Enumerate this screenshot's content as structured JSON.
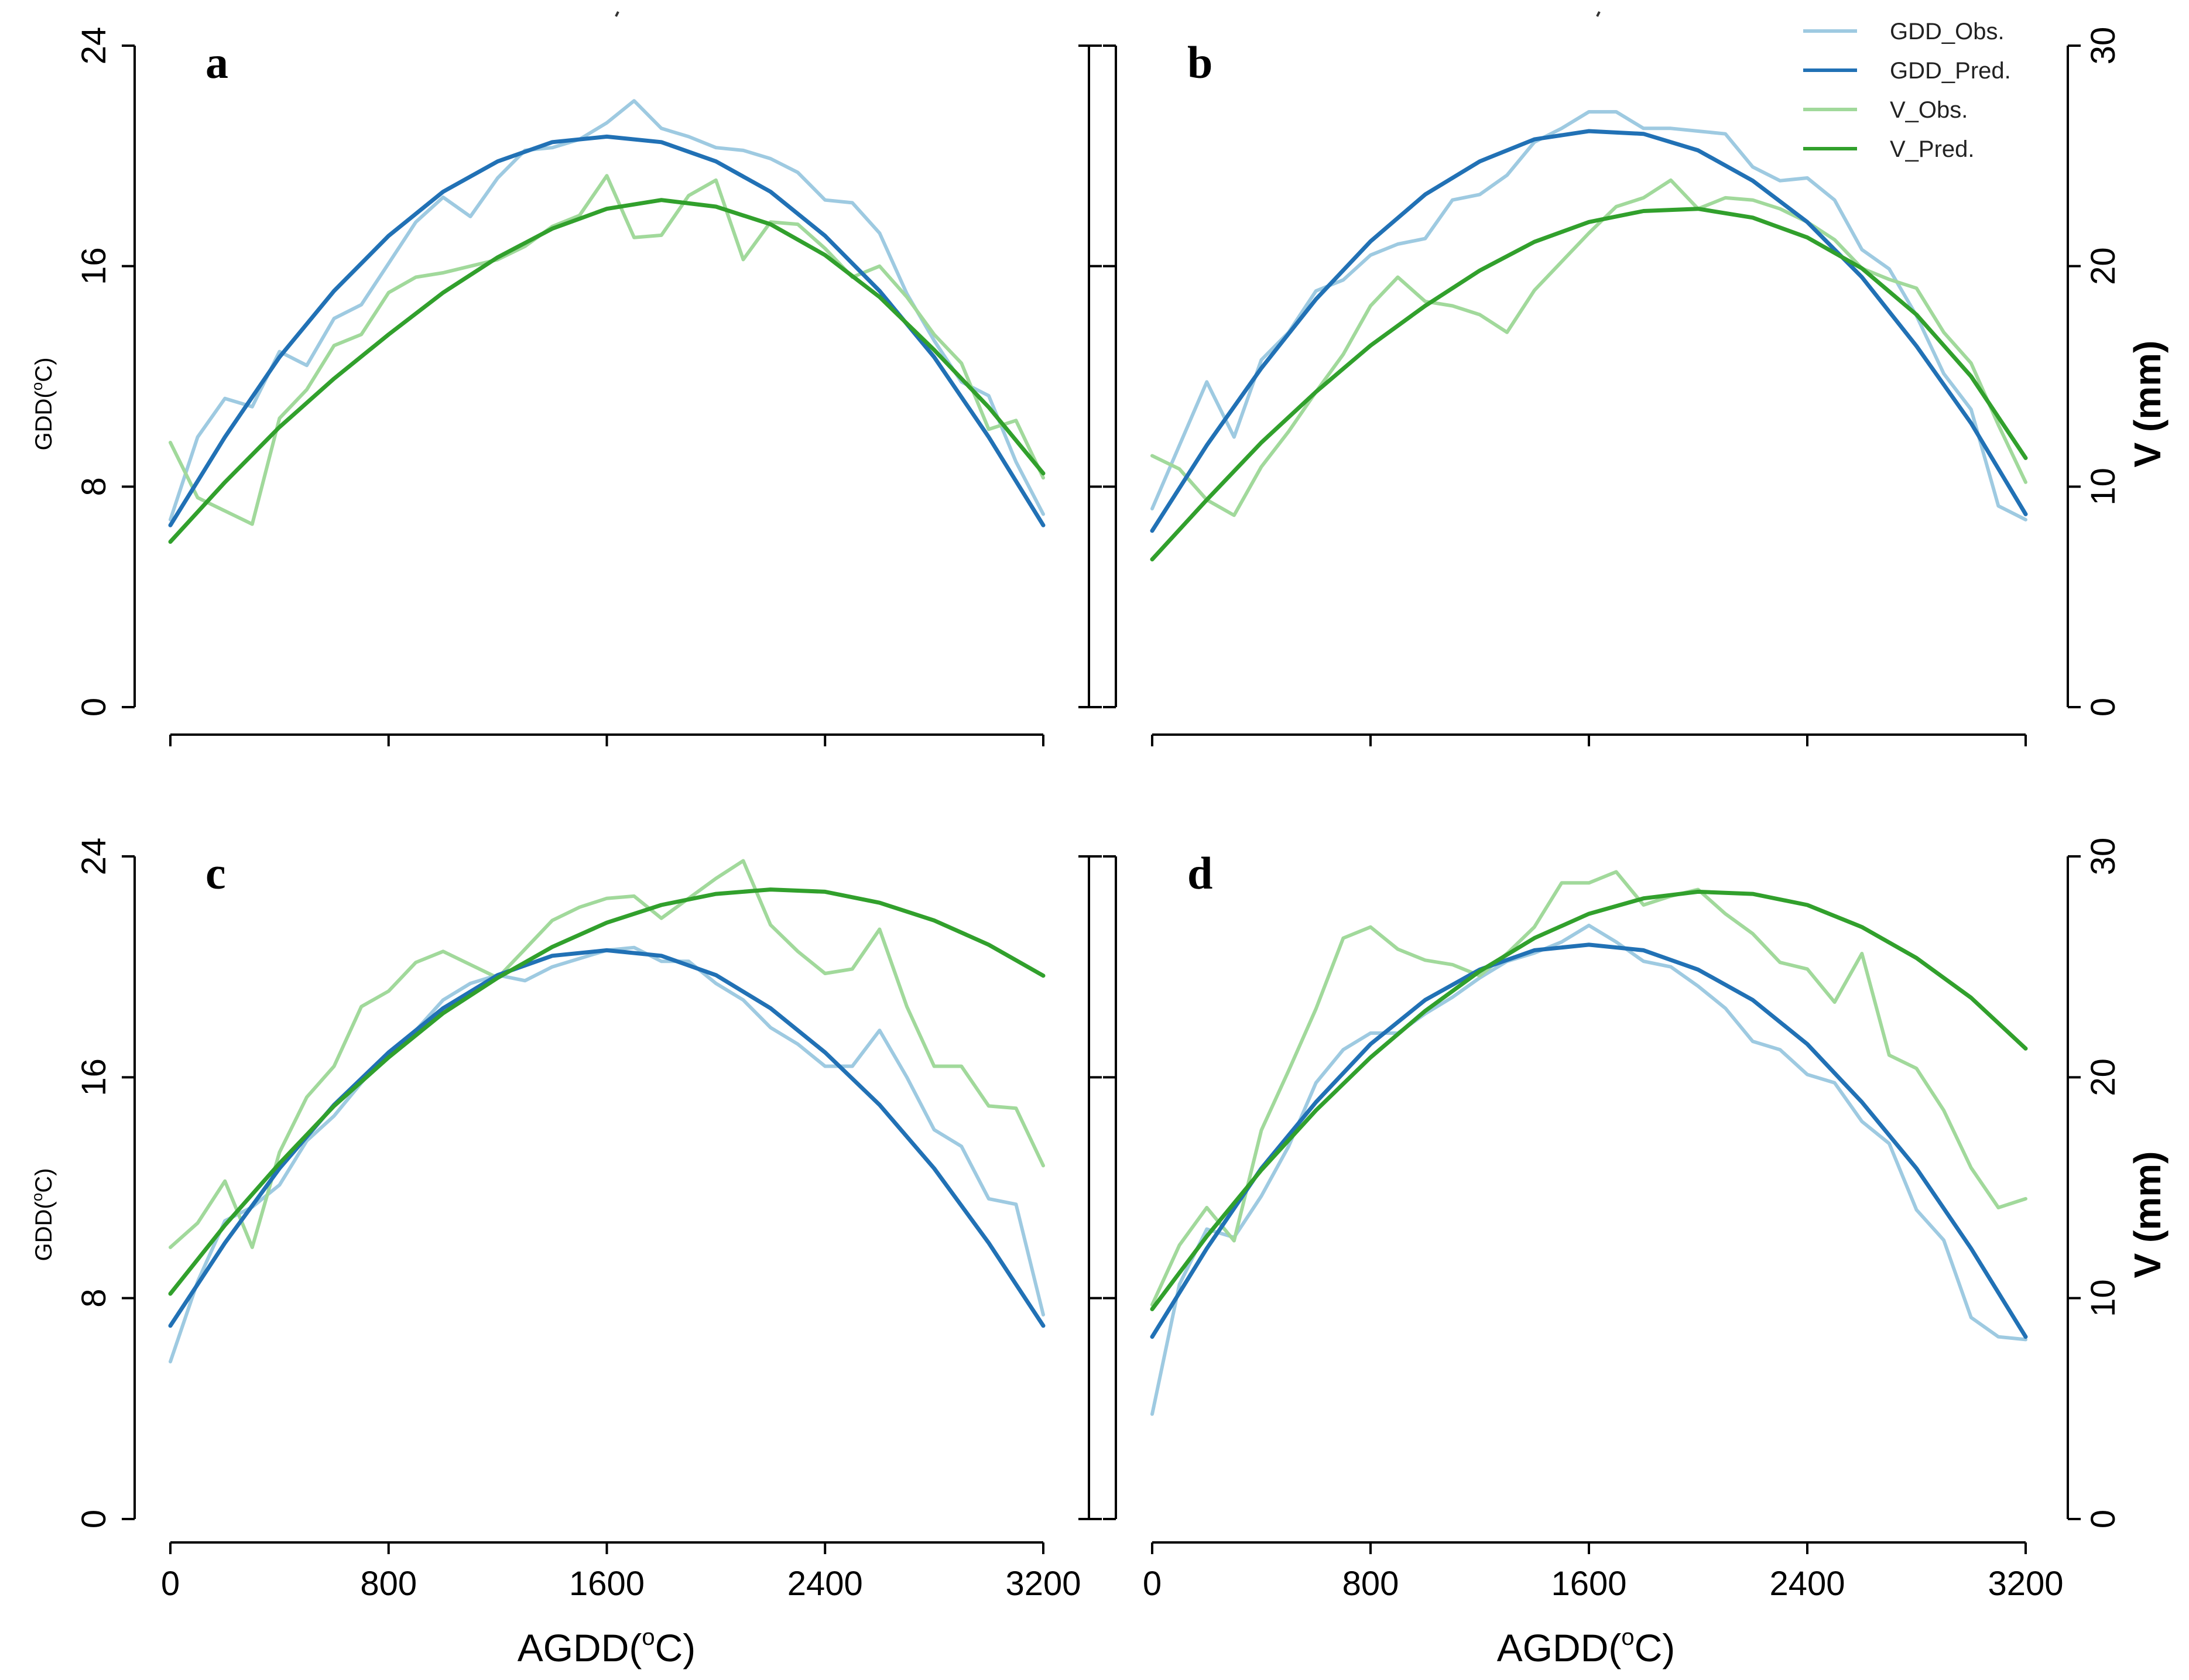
{
  "figure": {
    "x_axis_title_main": "AGDD(",
    "x_axis_title_sup": "o",
    "x_axis_title_tail": "C)",
    "left_axis_title_main": "GDD(",
    "left_axis_title_sup": "o",
    "left_axis_title_tail": "C)",
    "right_axis_title": "V (mm)"
  },
  "legend": {
    "items": [
      {
        "label": "GDD_Obs.",
        "color": "#9ecae1"
      },
      {
        "label": "GDD_Pred.",
        "color": "#2171b5"
      },
      {
        "label": "V_Obs.",
        "color": "#a1d99b"
      },
      {
        "label": "V_Pred.",
        "color": "#31a02c"
      }
    ]
  },
  "chart_data": [
    {
      "panel": "a",
      "type": "line",
      "xlim": [
        0,
        3200
      ],
      "x_ticks": [
        "0",
        "800",
        "1600",
        "2400",
        "3200"
      ],
      "ylim_left": [
        0,
        24
      ],
      "y_ticks_left": [
        "0",
        "8",
        "16",
        "24"
      ],
      "ylim_right": [
        0,
        30
      ],
      "y_ticks_right": [
        "0",
        "10",
        "20",
        "30"
      ],
      "series": [
        {
          "name": "GDD_Obs.",
          "axis": "left",
          "x": [
            0,
            100,
            200,
            300,
            400,
            500,
            600,
            700,
            800,
            900,
            1000,
            1100,
            1200,
            1300,
            1400,
            1500,
            1600,
            1700,
            1800,
            1900,
            2000,
            2100,
            2200,
            2300,
            2400,
            2500,
            2600,
            2700,
            2800,
            2900,
            3000,
            3100,
            3200
          ],
          "y": [
            6.8,
            9.8,
            11.2,
            10.9,
            12.9,
            12.4,
            14.1,
            14.6,
            16.1,
            17.6,
            18.5,
            17.8,
            19.2,
            20.2,
            20.3,
            20.6,
            21.2,
            22.0,
            21.0,
            20.7,
            20.3,
            20.2,
            19.9,
            19.4,
            18.4,
            18.3,
            17.2,
            15.0,
            13.3,
            11.8,
            11.3,
            8.9,
            7.0
          ]
        },
        {
          "name": "GDD_Pred.",
          "axis": "left",
          "x": [
            0,
            200,
            400,
            600,
            800,
            1000,
            1200,
            1400,
            1600,
            1800,
            2000,
            2200,
            2400,
            2600,
            2800,
            3000,
            3200
          ],
          "y": [
            6.6,
            9.8,
            12.7,
            15.1,
            17.1,
            18.7,
            19.8,
            20.5,
            20.7,
            20.5,
            19.8,
            18.7,
            17.1,
            15.1,
            12.7,
            9.8,
            6.6
          ]
        },
        {
          "name": "V_Obs.",
          "axis": "right",
          "x": [
            0,
            100,
            200,
            300,
            400,
            500,
            600,
            700,
            800,
            900,
            1000,
            1100,
            1200,
            1300,
            1400,
            1500,
            1600,
            1700,
            1800,
            1900,
            2000,
            2100,
            2200,
            2300,
            2400,
            2500,
            2600,
            2700,
            2800,
            2900,
            3000,
            3100,
            3200
          ],
          "y": [
            12.0,
            9.5,
            8.9,
            8.3,
            13.1,
            14.4,
            16.4,
            16.9,
            18.8,
            19.5,
            19.7,
            20.0,
            20.3,
            20.9,
            21.8,
            22.3,
            24.1,
            21.3,
            21.4,
            23.2,
            23.9,
            20.3,
            22.0,
            21.9,
            20.8,
            19.5,
            20.0,
            18.6,
            16.9,
            15.6,
            12.6,
            13.0,
            10.4
          ]
        },
        {
          "name": "V_Pred.",
          "axis": "right",
          "x": [
            0,
            200,
            400,
            600,
            800,
            1000,
            1200,
            1400,
            1600,
            1800,
            2000,
            2200,
            2400,
            2600,
            2800,
            3000,
            3200
          ],
          "y": [
            7.5,
            10.2,
            12.7,
            14.9,
            16.9,
            18.8,
            20.4,
            21.7,
            22.6,
            23.0,
            22.7,
            21.9,
            20.5,
            18.6,
            16.2,
            13.6,
            10.6
          ]
        }
      ]
    },
    {
      "panel": "b",
      "type": "line",
      "xlim": [
        0,
        3200
      ],
      "x_ticks": [
        "0",
        "800",
        "1600",
        "2400",
        "3200"
      ],
      "ylim_left": [
        0,
        24
      ],
      "y_ticks_left": [
        "0",
        "8",
        "16",
        "24"
      ],
      "ylim_right": [
        0,
        30
      ],
      "y_ticks_right": [
        "0",
        "10",
        "20",
        "30"
      ],
      "series": [
        {
          "name": "GDD_Obs.",
          "axis": "left",
          "x": [
            0,
            100,
            200,
            300,
            400,
            500,
            600,
            700,
            800,
            900,
            1000,
            1100,
            1200,
            1300,
            1400,
            1500,
            1600,
            1700,
            1800,
            1900,
            2000,
            2100,
            2200,
            2300,
            2400,
            2500,
            2600,
            2700,
            2800,
            2900,
            3000,
            3100,
            3200
          ],
          "y": [
            7.2,
            9.5,
            11.8,
            9.8,
            12.6,
            13.6,
            15.1,
            15.5,
            16.4,
            16.8,
            17.0,
            18.4,
            18.6,
            19.3,
            20.5,
            21.0,
            21.6,
            21.6,
            21.0,
            21.0,
            20.9,
            20.8,
            19.6,
            19.1,
            19.2,
            18.4,
            16.6,
            15.9,
            14.2,
            12.1,
            10.8,
            7.3,
            6.8
          ]
        },
        {
          "name": "GDD_Pred.",
          "axis": "left",
          "x": [
            0,
            200,
            400,
            600,
            800,
            1000,
            1200,
            1400,
            1600,
            1800,
            2000,
            2200,
            2400,
            2600,
            2800,
            3000,
            3200
          ],
          "y": [
            6.4,
            9.5,
            12.3,
            14.8,
            16.9,
            18.6,
            19.8,
            20.6,
            20.9,
            20.8,
            20.2,
            19.1,
            17.6,
            15.6,
            13.1,
            10.3,
            7.0
          ]
        },
        {
          "name": "V_Obs.",
          "axis": "right",
          "x": [
            0,
            100,
            200,
            300,
            400,
            500,
            600,
            700,
            800,
            900,
            1000,
            1100,
            1200,
            1300,
            1400,
            1500,
            1600,
            1700,
            1800,
            1900,
            2000,
            2100,
            2200,
            2300,
            2400,
            2500,
            2600,
            2700,
            2800,
            2900,
            3000,
            3100,
            3200
          ],
          "y": [
            11.4,
            10.8,
            9.4,
            8.7,
            10.9,
            12.5,
            14.3,
            16.0,
            18.2,
            19.5,
            18.4,
            18.2,
            17.8,
            17.0,
            18.9,
            20.2,
            21.5,
            22.7,
            23.1,
            23.9,
            22.6,
            23.1,
            23.0,
            22.6,
            22.0,
            21.2,
            19.9,
            19.4,
            19.0,
            17.0,
            15.6,
            12.8,
            10.2
          ]
        },
        {
          "name": "V_Pred.",
          "axis": "right",
          "x": [
            0,
            200,
            400,
            600,
            800,
            1000,
            1200,
            1400,
            1600,
            1800,
            2000,
            2200,
            2400,
            2600,
            2800,
            3000,
            3200
          ],
          "y": [
            6.7,
            9.4,
            12.0,
            14.3,
            16.4,
            18.2,
            19.8,
            21.1,
            22.0,
            22.5,
            22.6,
            22.2,
            21.3,
            19.9,
            17.8,
            15.0,
            11.3
          ]
        }
      ]
    },
    {
      "panel": "c",
      "type": "line",
      "xlim": [
        0,
        3200
      ],
      "x_ticks": [
        "0",
        "800",
        "1600",
        "2400",
        "3200"
      ],
      "ylim_left": [
        0,
        24
      ],
      "y_ticks_left": [
        "0",
        "8",
        "16",
        "24"
      ],
      "ylim_right": [
        0,
        30
      ],
      "y_ticks_right": [
        "0",
        "10",
        "20",
        "30"
      ],
      "series": [
        {
          "name": "GDD_Obs.",
          "axis": "left",
          "x": [
            0,
            100,
            200,
            300,
            400,
            500,
            600,
            700,
            800,
            900,
            1000,
            1100,
            1200,
            1300,
            1400,
            1500,
            1600,
            1700,
            1800,
            1900,
            2000,
            2100,
            2200,
            2300,
            2400,
            2500,
            2600,
            2700,
            2800,
            2900,
            3000,
            3100,
            3200
          ],
          "y": [
            5.7,
            8.6,
            10.8,
            11.3,
            12.1,
            13.7,
            14.6,
            15.8,
            16.9,
            17.7,
            18.8,
            19.4,
            19.7,
            19.5,
            20.0,
            20.3,
            20.6,
            20.7,
            20.2,
            20.2,
            19.4,
            18.8,
            17.8,
            17.2,
            16.4,
            16.4,
            17.7,
            16.0,
            14.1,
            13.5,
            11.6,
            11.4,
            7.4
          ]
        },
        {
          "name": "GDD_Pred.",
          "axis": "left",
          "x": [
            0,
            200,
            400,
            600,
            800,
            1000,
            1200,
            1400,
            1600,
            1800,
            2000,
            2200,
            2400,
            2600,
            2800,
            3000,
            3200
          ],
          "y": [
            7.0,
            10.0,
            12.7,
            15.0,
            16.9,
            18.5,
            19.7,
            20.4,
            20.6,
            20.4,
            19.7,
            18.5,
            16.9,
            15.0,
            12.7,
            10.0,
            7.0
          ]
        },
        {
          "name": "V_Obs.",
          "axis": "right",
          "x": [
            0,
            100,
            200,
            300,
            400,
            500,
            600,
            700,
            800,
            900,
            1000,
            1100,
            1200,
            1300,
            1400,
            1500,
            1600,
            1700,
            1800,
            1900,
            2000,
            2100,
            2200,
            2300,
            2400,
            2500,
            2600,
            2700,
            2800,
            2900,
            3000,
            3100,
            3200
          ],
          "y": [
            12.3,
            13.4,
            15.3,
            12.3,
            16.6,
            19.1,
            20.5,
            23.2,
            23.9,
            25.2,
            25.7,
            25.1,
            24.5,
            25.8,
            27.1,
            27.7,
            28.1,
            28.2,
            27.2,
            28.1,
            29.0,
            29.8,
            26.9,
            25.7,
            24.7,
            24.9,
            26.7,
            23.2,
            20.5,
            20.5,
            18.7,
            18.6,
            16.0
          ]
        },
        {
          "name": "V_Pred.",
          "axis": "right",
          "x": [
            0,
            200,
            400,
            600,
            800,
            1000,
            1200,
            1400,
            1600,
            1800,
            2000,
            2200,
            2400,
            2600,
            2800,
            3000,
            3200
          ],
          "y": [
            10.2,
            13.3,
            16.1,
            18.7,
            20.9,
            22.9,
            24.5,
            25.9,
            27.0,
            27.8,
            28.3,
            28.5,
            28.4,
            27.9,
            27.1,
            26.0,
            24.6
          ]
        }
      ]
    },
    {
      "panel": "d",
      "type": "line",
      "xlim": [
        0,
        3200
      ],
      "x_ticks": [
        "0",
        "800",
        "1600",
        "2400",
        "3200"
      ],
      "ylim_left": [
        0,
        24
      ],
      "y_ticks_left": [
        "0",
        "8",
        "16",
        "24"
      ],
      "ylim_right": [
        0,
        30
      ],
      "y_ticks_right": [
        "0",
        "10",
        "20",
        "30"
      ],
      "series": [
        {
          "name": "GDD_Obs.",
          "axis": "left",
          "x": [
            0,
            100,
            200,
            300,
            400,
            500,
            600,
            700,
            800,
            900,
            1000,
            1100,
            1200,
            1300,
            1400,
            1500,
            1600,
            1700,
            1800,
            1900,
            2000,
            2100,
            2200,
            2300,
            2400,
            2500,
            2600,
            2700,
            2800,
            2900,
            3000,
            3100,
            3200
          ],
          "y": [
            3.8,
            8.5,
            10.5,
            10.2,
            11.7,
            13.5,
            15.8,
            17.0,
            17.6,
            17.6,
            18.3,
            18.9,
            19.6,
            20.2,
            20.5,
            20.9,
            21.5,
            20.9,
            20.2,
            20.0,
            19.3,
            18.5,
            17.3,
            17.0,
            16.1,
            15.8,
            14.4,
            13.6,
            11.2,
            10.1,
            7.3,
            6.6,
            6.5
          ]
        },
        {
          "name": "GDD_Pred.",
          "axis": "left",
          "x": [
            0,
            200,
            400,
            600,
            800,
            1000,
            1200,
            1400,
            1600,
            1800,
            2000,
            2200,
            2400,
            2600,
            2800,
            3000,
            3200
          ],
          "y": [
            6.6,
            9.8,
            12.7,
            15.1,
            17.2,
            18.8,
            19.9,
            20.6,
            20.8,
            20.6,
            19.9,
            18.8,
            17.2,
            15.1,
            12.7,
            9.8,
            6.6
          ]
        },
        {
          "name": "V_Obs.",
          "axis": "right",
          "x": [
            0,
            100,
            200,
            300,
            400,
            500,
            600,
            700,
            800,
            900,
            1000,
            1100,
            1200,
            1300,
            1400,
            1500,
            1600,
            1700,
            1800,
            1900,
            2000,
            2100,
            2200,
            2300,
            2400,
            2500,
            2600,
            2700,
            2800,
            2900,
            3000,
            3100,
            3200
          ],
          "y": [
            9.7,
            12.4,
            14.1,
            12.6,
            17.6,
            20.3,
            23.1,
            26.3,
            26.8,
            25.8,
            25.3,
            25.1,
            24.6,
            25.6,
            26.8,
            28.8,
            28.8,
            29.3,
            27.8,
            28.2,
            28.5,
            27.4,
            26.5,
            25.2,
            24.9,
            23.4,
            25.6,
            21.0,
            20.4,
            18.5,
            15.9,
            14.1,
            14.5
          ]
        },
        {
          "name": "V_Pred.",
          "axis": "right",
          "x": [
            0,
            200,
            400,
            600,
            800,
            1000,
            1200,
            1400,
            1600,
            1800,
            2000,
            2200,
            2400,
            2600,
            2800,
            3000,
            3200
          ],
          "y": [
            9.5,
            12.8,
            15.8,
            18.5,
            20.9,
            23.0,
            24.8,
            26.3,
            27.4,
            28.1,
            28.4,
            28.3,
            27.8,
            26.8,
            25.4,
            23.6,
            21.3
          ]
        }
      ]
    }
  ]
}
